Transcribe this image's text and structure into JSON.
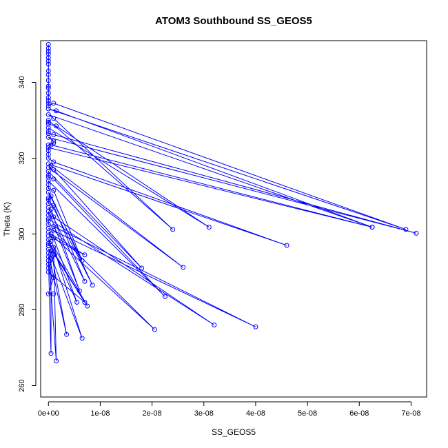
{
  "chart_data": {
    "type": "scatter",
    "title": "ATOM3 Southbound SS_GEOS5",
    "xlabel": "SS_GEOS5",
    "ylabel": "Theta (K)",
    "xlim": [
      -1.5e-09,
      7.3e-08
    ],
    "ylim": [
      257,
      351
    ],
    "xticks": [
      0,
      1e-08,
      2e-08,
      3e-08,
      4e-08,
      5e-08,
      6e-08,
      7e-08
    ],
    "xtick_labels": [
      "0e+00",
      "1e-08",
      "2e-08",
      "3e-08",
      "4e-08",
      "5e-08",
      "6e-08",
      "7e-08"
    ],
    "yticks": [
      260,
      280,
      300,
      320,
      340
    ],
    "ytick_labels": [
      "260",
      "280",
      "300",
      "320",
      "340"
    ],
    "grid": false,
    "legend": "none",
    "series": [
      {
        "color": "#0000ff",
        "marker": "open-circle",
        "line": true,
        "points": [
          [
            0,
            350.0
          ],
          [
            0,
            349.0
          ],
          [
            0,
            348.2
          ],
          [
            0,
            347.5
          ],
          [
            0,
            346.5
          ],
          [
            0,
            345.6
          ],
          [
            0,
            344.8
          ],
          [
            0,
            343.0
          ],
          [
            0,
            342.0
          ],
          [
            0,
            340.5
          ],
          [
            0,
            339.0
          ],
          [
            0,
            338.5
          ],
          [
            0,
            337.2
          ],
          [
            0,
            336.0
          ],
          [
            0,
            335.2
          ],
          [
            0,
            334.5
          ],
          [
            0,
            333.8
          ],
          [
            1e-09,
            334.5
          ],
          [
            6.9e-08,
            301.2
          ],
          [
            0,
            333.0
          ],
          [
            1.5e-09,
            332.5
          ],
          [
            6.25e-08,
            301.8
          ],
          [
            0,
            331.5
          ],
          [
            1e-09,
            330.5
          ],
          [
            2.4e-08,
            301.2
          ],
          [
            0,
            330.0
          ],
          [
            0,
            329.5
          ],
          [
            0,
            329.0
          ],
          [
            1.5e-09,
            328.5
          ],
          [
            3.1e-08,
            301.8
          ],
          [
            0,
            328.0
          ],
          [
            0,
            327.0
          ],
          [
            0,
            326.5
          ],
          [
            1e-09,
            326.2
          ],
          [
            7.1e-08,
            300.2
          ],
          [
            0,
            325.5
          ],
          [
            1e-09,
            324.5
          ],
          [
            1e-09,
            324.0
          ],
          [
            0,
            323.5
          ],
          [
            5e-10,
            323.5
          ],
          [
            6.25e-08,
            301.8
          ],
          [
            0,
            322.8
          ],
          [
            0,
            322.0
          ],
          [
            0,
            321.0
          ],
          [
            0,
            320.0
          ],
          [
            1e-09,
            319.0
          ],
          [
            4.6e-08,
            297.0
          ],
          [
            0,
            318.5
          ],
          [
            5e-10,
            318.0
          ],
          [
            2.6e-08,
            291.2
          ],
          [
            0,
            317.5
          ],
          [
            1e-09,
            317.0
          ],
          [
            1.8e-08,
            291.0
          ],
          [
            0,
            316.5
          ],
          [
            0,
            315.5
          ],
          [
            0,
            315.0
          ],
          [
            1e-09,
            314.5
          ],
          [
            2.25e-08,
            283.5
          ],
          [
            0,
            314.0
          ],
          [
            0,
            313.0
          ],
          [
            0,
            312.0
          ],
          [
            1e-09,
            311.5
          ],
          [
            6.5e-09,
            293.0
          ],
          [
            0,
            311.0
          ],
          [
            5e-10,
            310.0
          ],
          [
            8.5e-09,
            286.5
          ],
          [
            0,
            309.5
          ],
          [
            0,
            309.0
          ],
          [
            0,
            308.0
          ],
          [
            1e-09,
            307.5
          ],
          [
            7e-09,
            287.5
          ],
          [
            0,
            307.0
          ],
          [
            5e-10,
            306.5
          ],
          [
            6e-09,
            285.0
          ],
          [
            0,
            306.0
          ],
          [
            0,
            305.0
          ],
          [
            1e-09,
            304.5
          ],
          [
            3.2e-08,
            276.0
          ],
          [
            0,
            304.0
          ],
          [
            0,
            303.5
          ],
          [
            0,
            302.5
          ],
          [
            1e-09,
            302.0
          ],
          [
            4e-08,
            275.5
          ],
          [
            0,
            301.5
          ],
          [
            1e-09,
            301.0
          ],
          [
            2.05e-08,
            274.8
          ],
          [
            0,
            300.5
          ],
          [
            5e-10,
            300.0
          ],
          [
            7e-09,
            294.5
          ],
          [
            0,
            299.5
          ],
          [
            1e-09,
            299.0
          ],
          [
            5.5e-09,
            282.0
          ],
          [
            0,
            298.5
          ],
          [
            5e-10,
            298.0
          ],
          [
            7.5e-09,
            281.0
          ],
          [
            0,
            297.5
          ],
          [
            0,
            297.0
          ],
          [
            1e-09,
            296.5
          ],
          [
            6.5e-09,
            272.5
          ],
          [
            0,
            296.0
          ],
          [
            5e-10,
            295.5
          ],
          [
            3.5e-09,
            273.5
          ],
          [
            0,
            295.0
          ],
          [
            1e-09,
            295.5
          ],
          [
            1.5e-09,
            266.5
          ],
          [
            0,
            294.0
          ],
          [
            5e-10,
            293.5
          ],
          [
            5e-10,
            268.5
          ],
          [
            0,
            293.0
          ],
          [
            0,
            292.0
          ],
          [
            0,
            291.0
          ],
          [
            1.2e-09,
            294.5
          ],
          [
            7e-09,
            282.0
          ],
          [
            0,
            290.0
          ],
          [
            1e-09,
            288.5
          ],
          [
            0,
            284.2
          ],
          [
            1e-09,
            284.2
          ]
        ]
      }
    ]
  }
}
